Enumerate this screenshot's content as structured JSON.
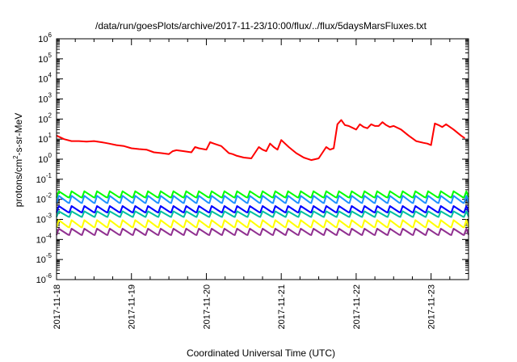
{
  "chart_data": {
    "type": "line",
    "title": "/data/run/goesPlots/archive/2017-11-23/10:00/flux/../flux/5daysMarsFluxes.txt",
    "xlabel": "Coordinated Universal Time (UTC)",
    "ylabel": {
      "prefix": "protons/cm",
      "sup": "2",
      "suffix": "-s-sr-MeV"
    },
    "yscale": "log",
    "ylim": [
      1e-06,
      1000000.0
    ],
    "xlim": [
      0,
      5.5
    ],
    "x_units": "days since 2017-11-18 00:00 UTC",
    "yticks": [
      {
        "exp": "-6",
        "v": -6
      },
      {
        "exp": "-5",
        "v": -5
      },
      {
        "exp": "-4",
        "v": -4
      },
      {
        "exp": "-3",
        "v": -3
      },
      {
        "exp": "-2",
        "v": -2
      },
      {
        "exp": "-1",
        "v": -1
      },
      {
        "exp": "0",
        "v": 0
      },
      {
        "exp": "1",
        "v": 1
      },
      {
        "exp": "2",
        "v": 2
      },
      {
        "exp": "3",
        "v": 3
      },
      {
        "exp": "4",
        "v": 4
      },
      {
        "exp": "5",
        "v": 5
      },
      {
        "exp": "6",
        "v": 6
      }
    ],
    "xticks": [
      {
        "label": "2017-11-18",
        "v": 0
      },
      {
        "label": "2017-11-19",
        "v": 1
      },
      {
        "label": "2017-11-20",
        "v": 2
      },
      {
        "label": "2017-11-21",
        "v": 3
      },
      {
        "label": "2017-11-22",
        "v": 4
      },
      {
        "label": "2017-11-23",
        "v": 5
      }
    ],
    "grid": false,
    "series": [
      {
        "color": "#ff0000",
        "x": [
          0.0,
          0.1,
          0.2,
          0.3,
          0.4,
          0.5,
          0.6,
          0.65,
          0.7,
          0.8,
          0.9,
          1.0,
          1.1,
          1.2,
          1.3,
          1.4,
          1.5,
          1.55,
          1.6,
          1.7,
          1.8,
          1.85,
          1.9,
          2.0,
          2.05,
          2.1,
          2.2,
          2.3,
          2.35,
          2.4,
          2.5,
          2.6,
          2.7,
          2.75,
          2.8,
          2.85,
          2.9,
          2.95,
          3.0,
          3.1,
          3.2,
          3.3,
          3.4,
          3.5,
          3.6,
          3.65,
          3.7,
          3.75,
          3.8,
          3.85,
          3.9,
          4.0,
          4.05,
          4.1,
          4.15,
          4.2,
          4.25,
          4.3,
          4.35,
          4.4,
          4.45,
          4.5,
          4.6,
          4.7,
          4.8,
          4.9,
          4.95,
          5.0,
          5.05,
          5.1,
          5.15,
          5.2,
          5.3,
          5.4,
          5.45
        ],
        "y": [
          15,
          10,
          8,
          8,
          7.5,
          8,
          7,
          6.5,
          6,
          5,
          4.5,
          3.5,
          3.2,
          3,
          2.2,
          2,
          1.8,
          2.5,
          2.8,
          2.5,
          2.2,
          4,
          3.5,
          3,
          7,
          6,
          4.5,
          2,
          1.8,
          1.5,
          1.2,
          1.1,
          4,
          3,
          2.5,
          6,
          4,
          3,
          9,
          4,
          2,
          1.2,
          0.9,
          1.1,
          4,
          3,
          3.5,
          55,
          90,
          50,
          45,
          30,
          55,
          40,
          35,
          55,
          45,
          45,
          70,
          50,
          40,
          45,
          30,
          15,
          8,
          6.5,
          6,
          5,
          60,
          50,
          40,
          55,
          30,
          15,
          11
        ],
        "sawtooth": false
      },
      {
        "color": "#00ff00",
        "level": 0.022,
        "drop": 0.55,
        "sawtooth": true,
        "period": 0.17
      },
      {
        "color": "#1e90ff",
        "level": 0.013,
        "drop": 0.5,
        "sawtooth": true,
        "period": 0.17
      },
      {
        "color": "#0000ff",
        "level": 0.004,
        "drop": 0.55,
        "sawtooth": true,
        "period": 0.17
      },
      {
        "color": "#00c0a0",
        "level": 0.0022,
        "drop": 0.6,
        "sawtooth": true,
        "period": 0.17
      },
      {
        "color": "#ffff00",
        "level": 0.0008,
        "drop": 0.5,
        "sawtooth": true,
        "period": 0.17
      },
      {
        "color": "#903090",
        "level": 0.0003,
        "drop": 0.55,
        "sawtooth": true,
        "period": 0.17
      }
    ]
  }
}
